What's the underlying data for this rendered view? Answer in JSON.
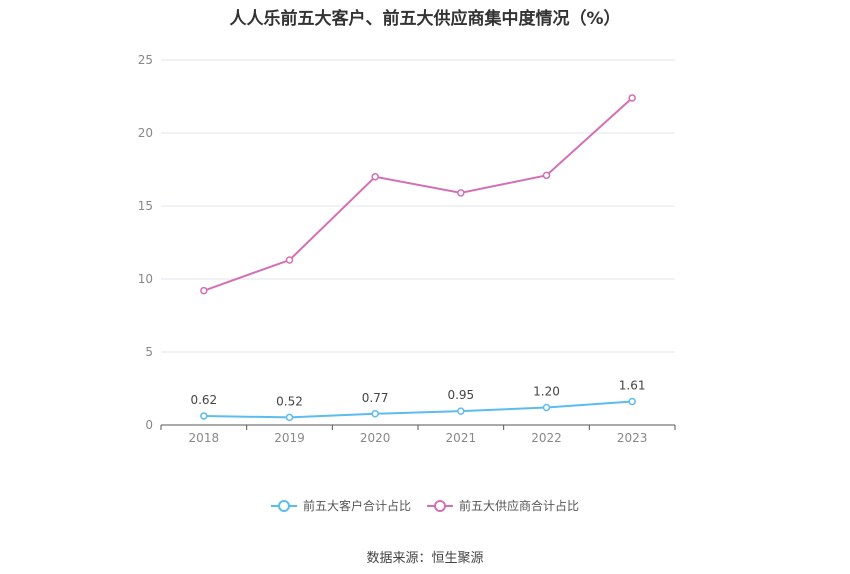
{
  "chart_data": {
    "type": "line",
    "title": "人人乐前五大客户、前五大供应商集中度情况（%）",
    "x": [
      "2018",
      "2019",
      "2020",
      "2021",
      "2022",
      "2023"
    ],
    "ylim": [
      0,
      25
    ],
    "yticks": [
      "0",
      "5",
      "10",
      "15",
      "20",
      "25"
    ],
    "series": [
      {
        "name": "前五大客户合计占比",
        "color": "#5bbcf0",
        "values": [
          0.62,
          0.52,
          0.77,
          0.95,
          1.2,
          1.61
        ],
        "labels": [
          "0.62",
          "0.52",
          "0.77",
          "0.95",
          "1.20",
          "1.61"
        ]
      },
      {
        "name": "前五大供应商合计占比",
        "color": "#d36fb5",
        "values": [
          9.2,
          11.3,
          17.0,
          15.9,
          17.1,
          22.4
        ]
      }
    ],
    "legend_position": "bottom",
    "grid": true
  },
  "source": "数据来源：恒生聚源"
}
